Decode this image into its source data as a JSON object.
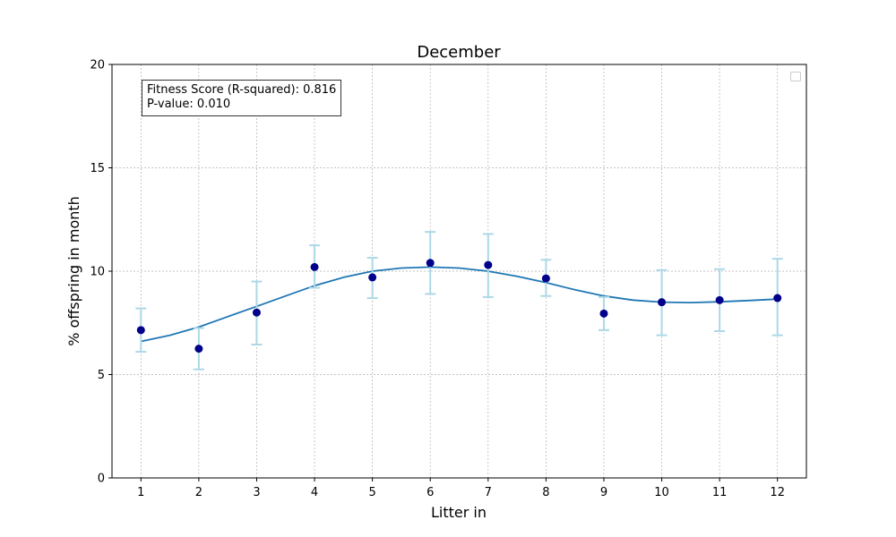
{
  "chart_data": {
    "type": "scatter",
    "title": "December",
    "xlabel": "Litter in",
    "ylabel": "% offspring in month",
    "xlim": [
      0.5,
      12.5
    ],
    "ylim": [
      0,
      20
    ],
    "x_ticks": [
      1,
      2,
      3,
      4,
      5,
      6,
      7,
      8,
      9,
      10,
      11,
      12
    ],
    "y_ticks": [
      0,
      5,
      10,
      15,
      20
    ],
    "grid": true,
    "legend": "top-right (empty)",
    "series": [
      {
        "kind": "points_with_error_bars",
        "x": [
          1,
          2,
          3,
          4,
          5,
          6,
          7,
          8,
          9,
          10,
          11,
          12
        ],
        "y": [
          7.15,
          6.25,
          8.0,
          10.2,
          9.7,
          10.4,
          10.3,
          9.65,
          7.95,
          8.5,
          8.6,
          8.7
        ],
        "err_low": [
          6.1,
          5.25,
          6.45,
          9.2,
          8.7,
          8.9,
          8.75,
          8.8,
          7.15,
          6.9,
          7.1,
          6.9
        ],
        "err_high": [
          8.2,
          7.25,
          9.5,
          11.25,
          10.65,
          11.9,
          11.8,
          10.55,
          8.75,
          10.05,
          10.1,
          10.6
        ],
        "color": "#00008b",
        "error_color": "#add8e6"
      },
      {
        "kind": "fit_curve",
        "x": [
          1,
          1.5,
          2,
          2.5,
          3,
          3.5,
          4,
          4.5,
          5,
          5.5,
          6,
          6.5,
          7,
          7.5,
          8,
          8.5,
          9,
          9.5,
          10,
          10.5,
          11,
          11.5,
          12
        ],
        "y": [
          6.6,
          6.9,
          7.3,
          7.8,
          8.3,
          8.8,
          9.3,
          9.7,
          10.0,
          10.15,
          10.2,
          10.15,
          10.0,
          9.75,
          9.45,
          9.1,
          8.8,
          8.6,
          8.5,
          8.48,
          8.52,
          8.58,
          8.65
        ],
        "color": "#1f77b4"
      }
    ],
    "annotation": {
      "line1": "Fitness Score (R-squared): 0.816",
      "line2": "P-value: 0.010"
    }
  },
  "colors": {
    "grid": "#b0b0b0",
    "axes": "#000000",
    "fit_line": "#1f77b4",
    "points": "#00008b",
    "error_bars": "#add8e6"
  }
}
